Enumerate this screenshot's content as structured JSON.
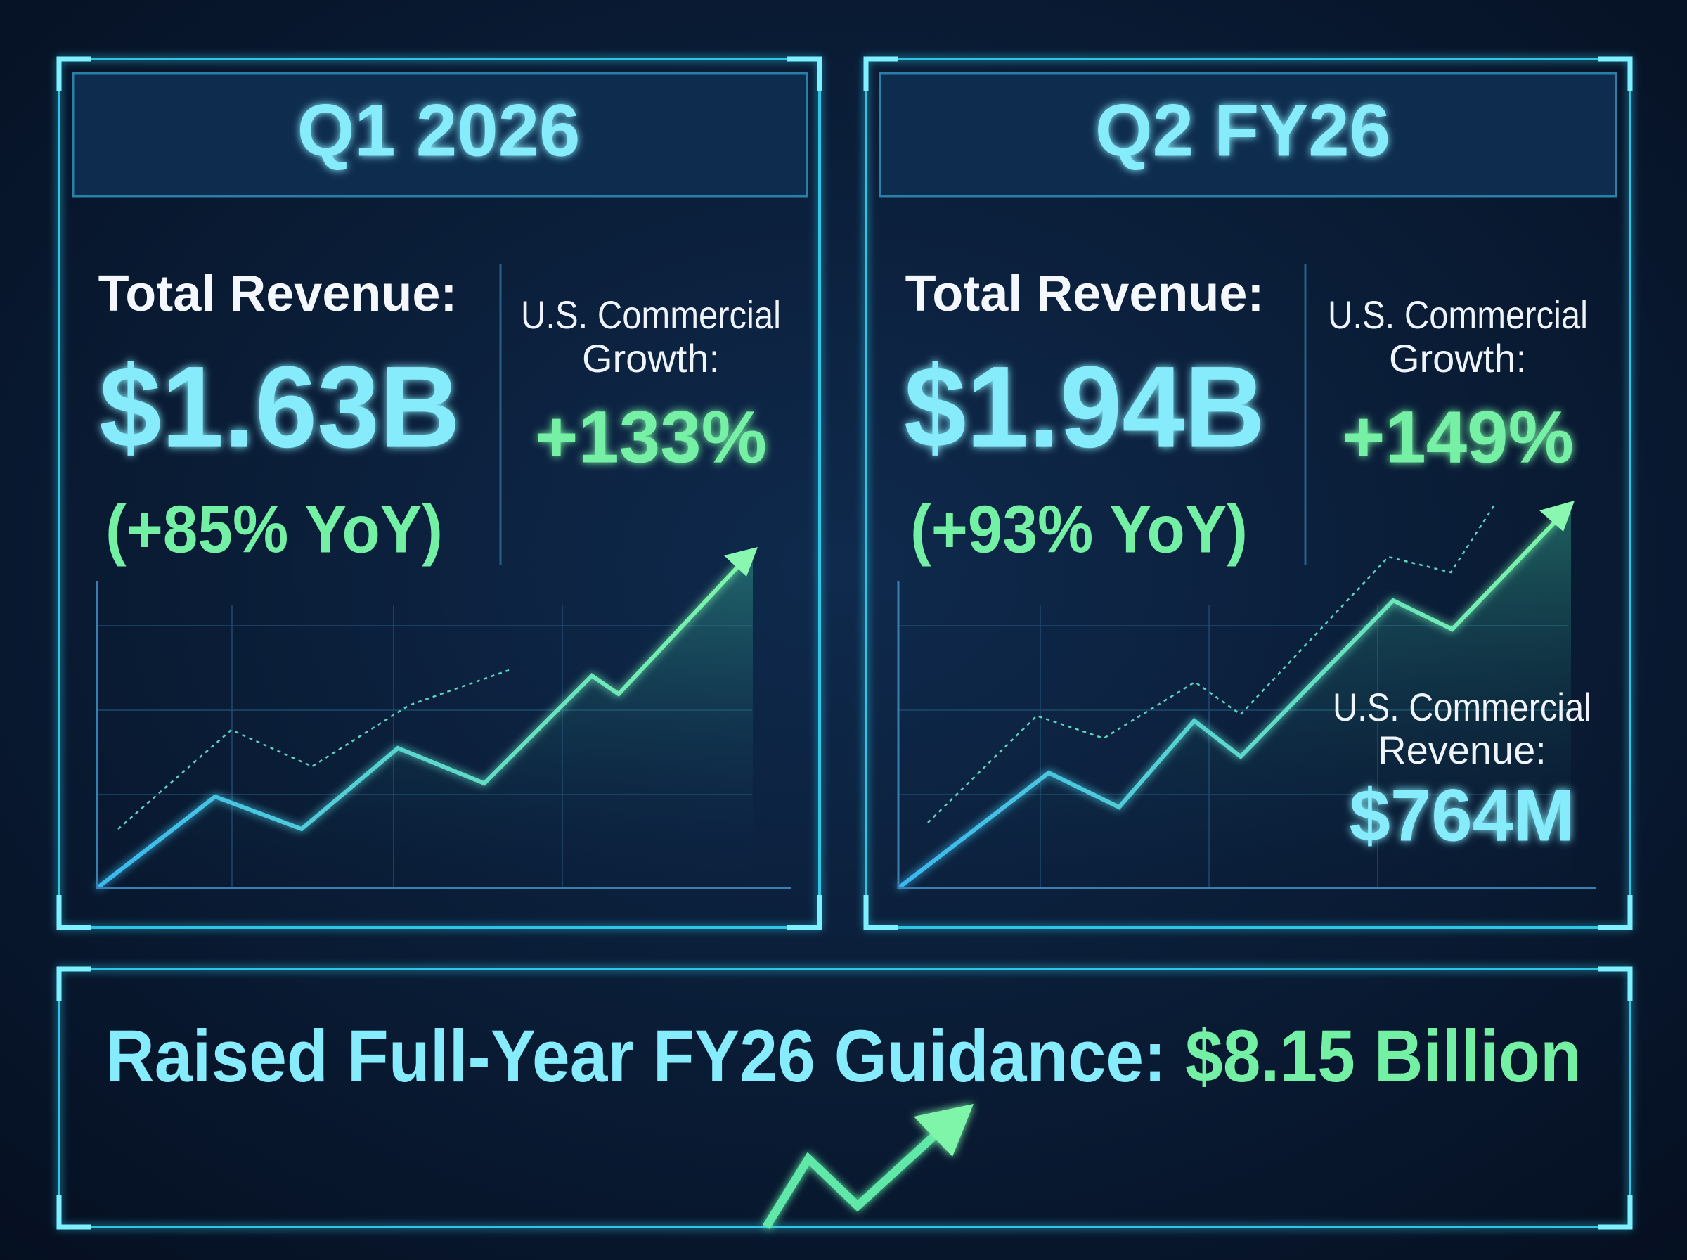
{
  "panels": [
    {
      "title": "Q1 2026",
      "revenue_label": "Total Revenue:",
      "revenue": "$1.63B",
      "yoy": "(+85% YoY)",
      "growth_label": [
        "U.S. Commercial",
        "Growth:"
      ],
      "growth": "+133%"
    },
    {
      "title": "Q2 FY26",
      "revenue_label": "Total Revenue:",
      "revenue": "$1.94B",
      "yoy": "(+93% YoY)",
      "growth_label": [
        "U.S. Commercial",
        "Growth:"
      ],
      "growth": "+149%",
      "commercial_revenue_label": [
        "U.S. Commercial",
        "Revenue:"
      ],
      "commercial_revenue": "$764M"
    }
  ],
  "banner": {
    "label": "Raised Full-Year FY26 Guidance:",
    "value": "$8.15 Billion"
  }
}
